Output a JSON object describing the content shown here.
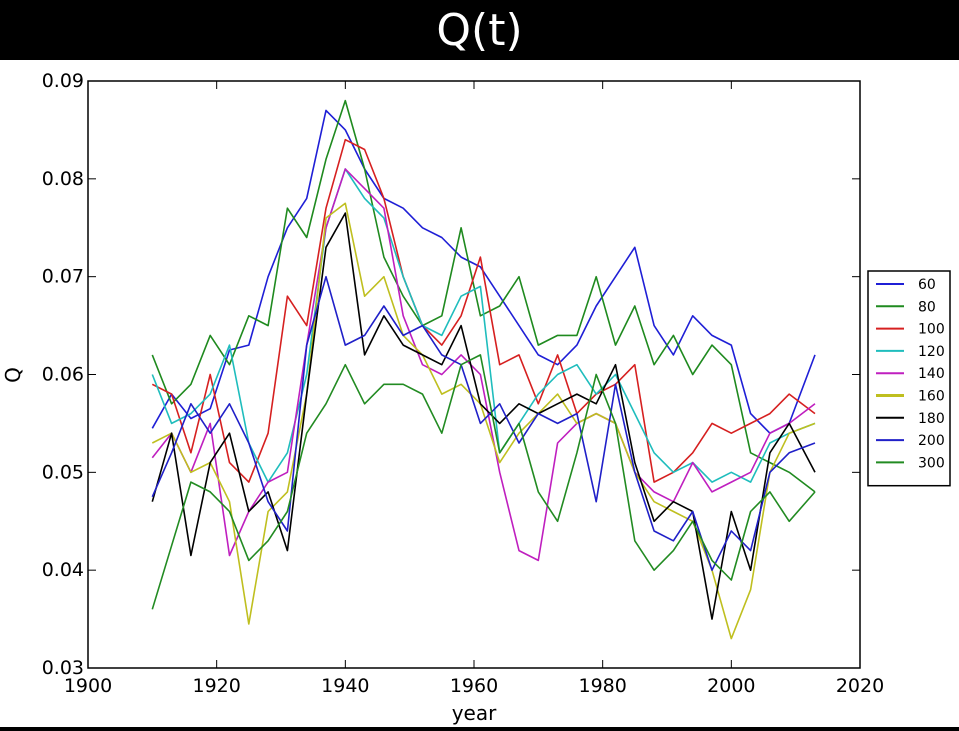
{
  "slide": {
    "title": "Q(t)"
  },
  "chart_data": {
    "type": "line",
    "title": "",
    "xlabel": "year",
    "ylabel": "Q",
    "xlim": [
      1900,
      2020
    ],
    "ylim": [
      0.03,
      0.09
    ],
    "x_ticks": [
      1900,
      1920,
      1940,
      1960,
      1980,
      2000,
      2020
    ],
    "y_ticks": [
      0.03,
      0.04,
      0.05,
      0.06,
      0.07,
      0.08,
      0.09
    ],
    "x_tick_labels": [
      "1900",
      "1920",
      "1940",
      "1960",
      "1980",
      "2000",
      "2020"
    ],
    "y_tick_labels": [
      "0.03",
      "0.04",
      "0.05",
      "0.06",
      "0.07",
      "0.08",
      "0.09"
    ],
    "legend_position": "outside-right",
    "grid": false,
    "series": [
      {
        "name": "60",
        "color": "#1f1fd6",
        "x": [
          1910,
          1913,
          1916,
          1919,
          1922,
          1925,
          1928,
          1931,
          1934,
          1937,
          1940,
          1943,
          1946,
          1949,
          1952,
          1955,
          1958,
          1961,
          1964,
          1967,
          1970,
          1973,
          1976,
          1979,
          1982,
          1985,
          1988,
          1991,
          1994,
          1997,
          2000,
          2003,
          2006,
          2009,
          2013
        ],
        "y": [
          0.0545,
          0.058,
          0.0555,
          0.0565,
          0.0625,
          0.063,
          0.07,
          0.075,
          0.078,
          0.087,
          0.085,
          0.081,
          0.078,
          0.077,
          0.075,
          0.074,
          0.072,
          0.071,
          0.068,
          0.065,
          0.062,
          0.061,
          0.063,
          0.067,
          0.07,
          0.073,
          0.065,
          0.062,
          0.066,
          0.064,
          0.063,
          0.056,
          0.054,
          0.055,
          0.062
        ]
      },
      {
        "name": "80",
        "color": "#1f8a1f",
        "x": [
          1910,
          1913,
          1916,
          1919,
          1922,
          1925,
          1928,
          1931,
          1934,
          1937,
          1940,
          1943,
          1946,
          1949,
          1952,
          1955,
          1958,
          1961,
          1964,
          1967,
          1970,
          1973,
          1976,
          1979,
          1982,
          1985,
          1988,
          1991,
          1994,
          1997,
          2000,
          2003,
          2006,
          2009,
          2013
        ],
        "y": [
          0.062,
          0.057,
          0.059,
          0.064,
          0.061,
          0.066,
          0.065,
          0.077,
          0.074,
          0.082,
          0.088,
          0.081,
          0.072,
          0.068,
          0.065,
          0.066,
          0.075,
          0.066,
          0.067,
          0.07,
          0.063,
          0.064,
          0.064,
          0.07,
          0.063,
          0.067,
          0.061,
          0.064,
          0.06,
          0.063,
          0.061,
          0.052,
          0.051,
          0.05,
          0.048
        ]
      },
      {
        "name": "100",
        "color": "#d62020",
        "x": [
          1910,
          1913,
          1916,
          1919,
          1922,
          1925,
          1928,
          1931,
          1934,
          1937,
          1940,
          1943,
          1946,
          1949,
          1952,
          1955,
          1958,
          1961,
          1964,
          1967,
          1970,
          1973,
          1976,
          1979,
          1982,
          1985,
          1988,
          1991,
          1994,
          1997,
          2000,
          2003,
          2006,
          2009,
          2013
        ],
        "y": [
          0.059,
          0.058,
          0.052,
          0.06,
          0.051,
          0.049,
          0.054,
          0.068,
          0.065,
          0.077,
          0.084,
          0.083,
          0.078,
          0.07,
          0.065,
          0.063,
          0.066,
          0.072,
          0.061,
          0.062,
          0.057,
          0.062,
          0.056,
          0.058,
          0.059,
          0.061,
          0.049,
          0.05,
          0.052,
          0.055,
          0.054,
          0.055,
          0.056,
          0.058,
          0.056
        ]
      },
      {
        "name": "120",
        "color": "#1fbdbd",
        "x": [
          1910,
          1913,
          1916,
          1919,
          1922,
          1925,
          1928,
          1931,
          1934,
          1937,
          1940,
          1943,
          1946,
          1949,
          1952,
          1955,
          1958,
          1961,
          1964,
          1967,
          1970,
          1973,
          1976,
          1979,
          1982,
          1985,
          1988,
          1991,
          1994,
          1997,
          2000,
          2003,
          2006,
          2009,
          2013
        ],
        "y": [
          0.06,
          0.055,
          0.056,
          0.058,
          0.063,
          0.053,
          0.049,
          0.052,
          0.06,
          0.075,
          0.081,
          0.078,
          0.076,
          0.07,
          0.065,
          0.064,
          0.068,
          0.069,
          0.052,
          0.055,
          0.058,
          0.06,
          0.061,
          0.058,
          0.06,
          0.056,
          0.052,
          0.05,
          0.051,
          0.049,
          0.05,
          0.049,
          0.053,
          0.054,
          0.055
        ]
      },
      {
        "name": "140",
        "color": "#bf1fbf",
        "x": [
          1910,
          1913,
          1916,
          1919,
          1922,
          1925,
          1928,
          1931,
          1934,
          1937,
          1940,
          1943,
          1946,
          1949,
          1952,
          1955,
          1958,
          1961,
          1964,
          1967,
          1970,
          1973,
          1976,
          1979,
          1982,
          1985,
          1988,
          1991,
          1994,
          1997,
          2000,
          2003,
          2006,
          2009,
          2013
        ],
        "y": [
          0.0515,
          0.054,
          0.05,
          0.055,
          0.0415,
          0.046,
          0.049,
          0.05,
          0.063,
          0.075,
          0.081,
          0.079,
          0.077,
          0.066,
          0.061,
          0.06,
          0.062,
          0.06,
          0.05,
          0.042,
          0.041,
          0.053,
          0.055,
          0.056,
          0.055,
          0.05,
          0.048,
          0.047,
          0.051,
          0.048,
          0.049,
          0.05,
          0.054,
          0.055,
          0.057
        ]
      },
      {
        "name": "160",
        "color": "#bfbf1f",
        "x": [
          1910,
          1913,
          1916,
          1919,
          1922,
          1925,
          1928,
          1931,
          1934,
          1937,
          1940,
          1943,
          1946,
          1949,
          1952,
          1955,
          1958,
          1961,
          1964,
          1967,
          1970,
          1973,
          1976,
          1979,
          1982,
          1985,
          1988,
          1991,
          1994,
          1997,
          2000,
          2003,
          2006,
          2009,
          2013
        ],
        "y": [
          0.053,
          0.054,
          0.05,
          0.051,
          0.047,
          0.0345,
          0.046,
          0.048,
          0.058,
          0.076,
          0.0775,
          0.068,
          0.07,
          0.064,
          0.062,
          0.058,
          0.059,
          0.057,
          0.051,
          0.054,
          0.056,
          0.058,
          0.055,
          0.056,
          0.055,
          0.05,
          0.047,
          0.046,
          0.045,
          0.04,
          0.033,
          0.038,
          0.05,
          0.054,
          0.055
        ]
      },
      {
        "name": "180",
        "color": "#000000",
        "x": [
          1910,
          1913,
          1916,
          1919,
          1922,
          1925,
          1928,
          1931,
          1934,
          1937,
          1940,
          1943,
          1946,
          1949,
          1952,
          1955,
          1958,
          1961,
          1964,
          1967,
          1970,
          1973,
          1976,
          1979,
          1982,
          1985,
          1988,
          1991,
          1994,
          1997,
          2000,
          2003,
          2006,
          2009,
          2013
        ],
        "y": [
          0.047,
          0.054,
          0.0415,
          0.051,
          0.054,
          0.046,
          0.048,
          0.042,
          0.058,
          0.073,
          0.0765,
          0.062,
          0.066,
          0.063,
          0.062,
          0.061,
          0.065,
          0.057,
          0.055,
          0.057,
          0.056,
          0.057,
          0.058,
          0.057,
          0.061,
          0.051,
          0.045,
          0.047,
          0.046,
          0.035,
          0.046,
          0.04,
          0.052,
          0.055,
          0.05
        ]
      },
      {
        "name": "200",
        "color": "#2020c8",
        "x": [
          1910,
          1913,
          1916,
          1919,
          1922,
          1925,
          1928,
          1931,
          1934,
          1937,
          1940,
          1943,
          1946,
          1949,
          1952,
          1955,
          1958,
          1961,
          1964,
          1967,
          1970,
          1973,
          1976,
          1979,
          1982,
          1985,
          1988,
          1991,
          1994,
          1997,
          2000,
          2003,
          2006,
          2009,
          2013
        ],
        "y": [
          0.0475,
          0.052,
          0.057,
          0.054,
          0.057,
          0.053,
          0.047,
          0.044,
          0.063,
          0.07,
          0.063,
          0.064,
          0.067,
          0.064,
          0.065,
          0.062,
          0.061,
          0.055,
          0.057,
          0.053,
          0.056,
          0.055,
          0.056,
          0.047,
          0.059,
          0.05,
          0.044,
          0.043,
          0.046,
          0.04,
          0.044,
          0.042,
          0.05,
          0.052,
          0.053
        ]
      },
      {
        "name": "300",
        "color": "#228b22",
        "x": [
          1910,
          1913,
          1916,
          1919,
          1922,
          1925,
          1928,
          1931,
          1934,
          1937,
          1940,
          1943,
          1946,
          1949,
          1952,
          1955,
          1958,
          1961,
          1964,
          1967,
          1970,
          1973,
          1976,
          1979,
          1982,
          1985,
          1988,
          1991,
          1994,
          1997,
          2000,
          2003,
          2006,
          2009,
          2013
        ],
        "y": [
          0.036,
          0.0425,
          0.049,
          0.048,
          0.046,
          0.041,
          0.043,
          0.046,
          0.054,
          0.057,
          0.061,
          0.057,
          0.059,
          0.059,
          0.058,
          0.054,
          0.061,
          0.062,
          0.052,
          0.055,
          0.048,
          0.045,
          0.052,
          0.06,
          0.055,
          0.043,
          0.04,
          0.042,
          0.045,
          0.041,
          0.039,
          0.046,
          0.048,
          0.045,
          0.048
        ]
      }
    ]
  }
}
